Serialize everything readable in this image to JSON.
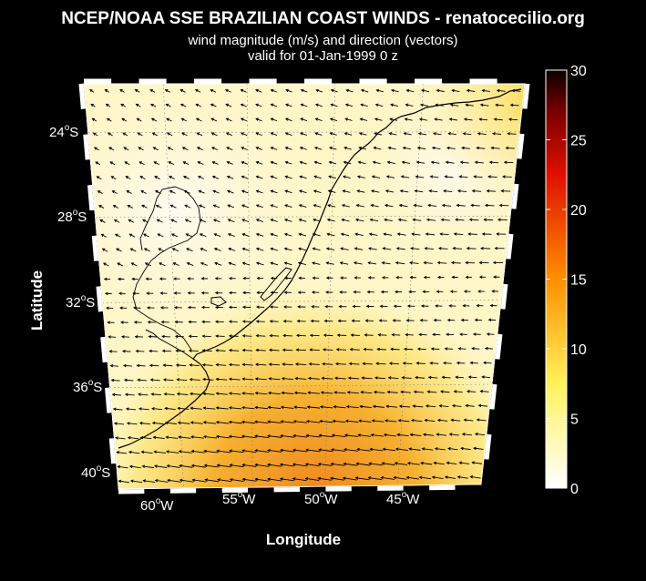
{
  "header": {
    "title": "NCEP/NOAA SSE BRAZILIAN COAST WINDS - renatocecilio.org",
    "subtitle": "wind magnitude (m/s) and direction (vectors)",
    "valid": "valid for 01-Jan-1999  0 z"
  },
  "axes": {
    "xlabel": "Longitude",
    "ylabel": "Latitude",
    "lat_ticks": [
      {
        "deg": "24",
        "hemi": "S"
      },
      {
        "deg": "28",
        "hemi": "S"
      },
      {
        "deg": "32",
        "hemi": "S"
      },
      {
        "deg": "36",
        "hemi": "S"
      },
      {
        "deg": "40",
        "hemi": "S"
      }
    ],
    "lon_ticks": [
      {
        "deg": "60",
        "hemi": "W"
      },
      {
        "deg": "55",
        "hemi": "W"
      },
      {
        "deg": "50",
        "hemi": "W"
      },
      {
        "deg": "45",
        "hemi": "W"
      }
    ]
  },
  "colorbar": {
    "range": [
      0,
      30
    ],
    "ticks": [
      "0",
      "5",
      "10",
      "15",
      "20",
      "25",
      "30"
    ],
    "colormap": "hot-reversed"
  },
  "colors": {
    "background": "#000000",
    "coast": "#000000",
    "vectors": "#000000"
  }
}
